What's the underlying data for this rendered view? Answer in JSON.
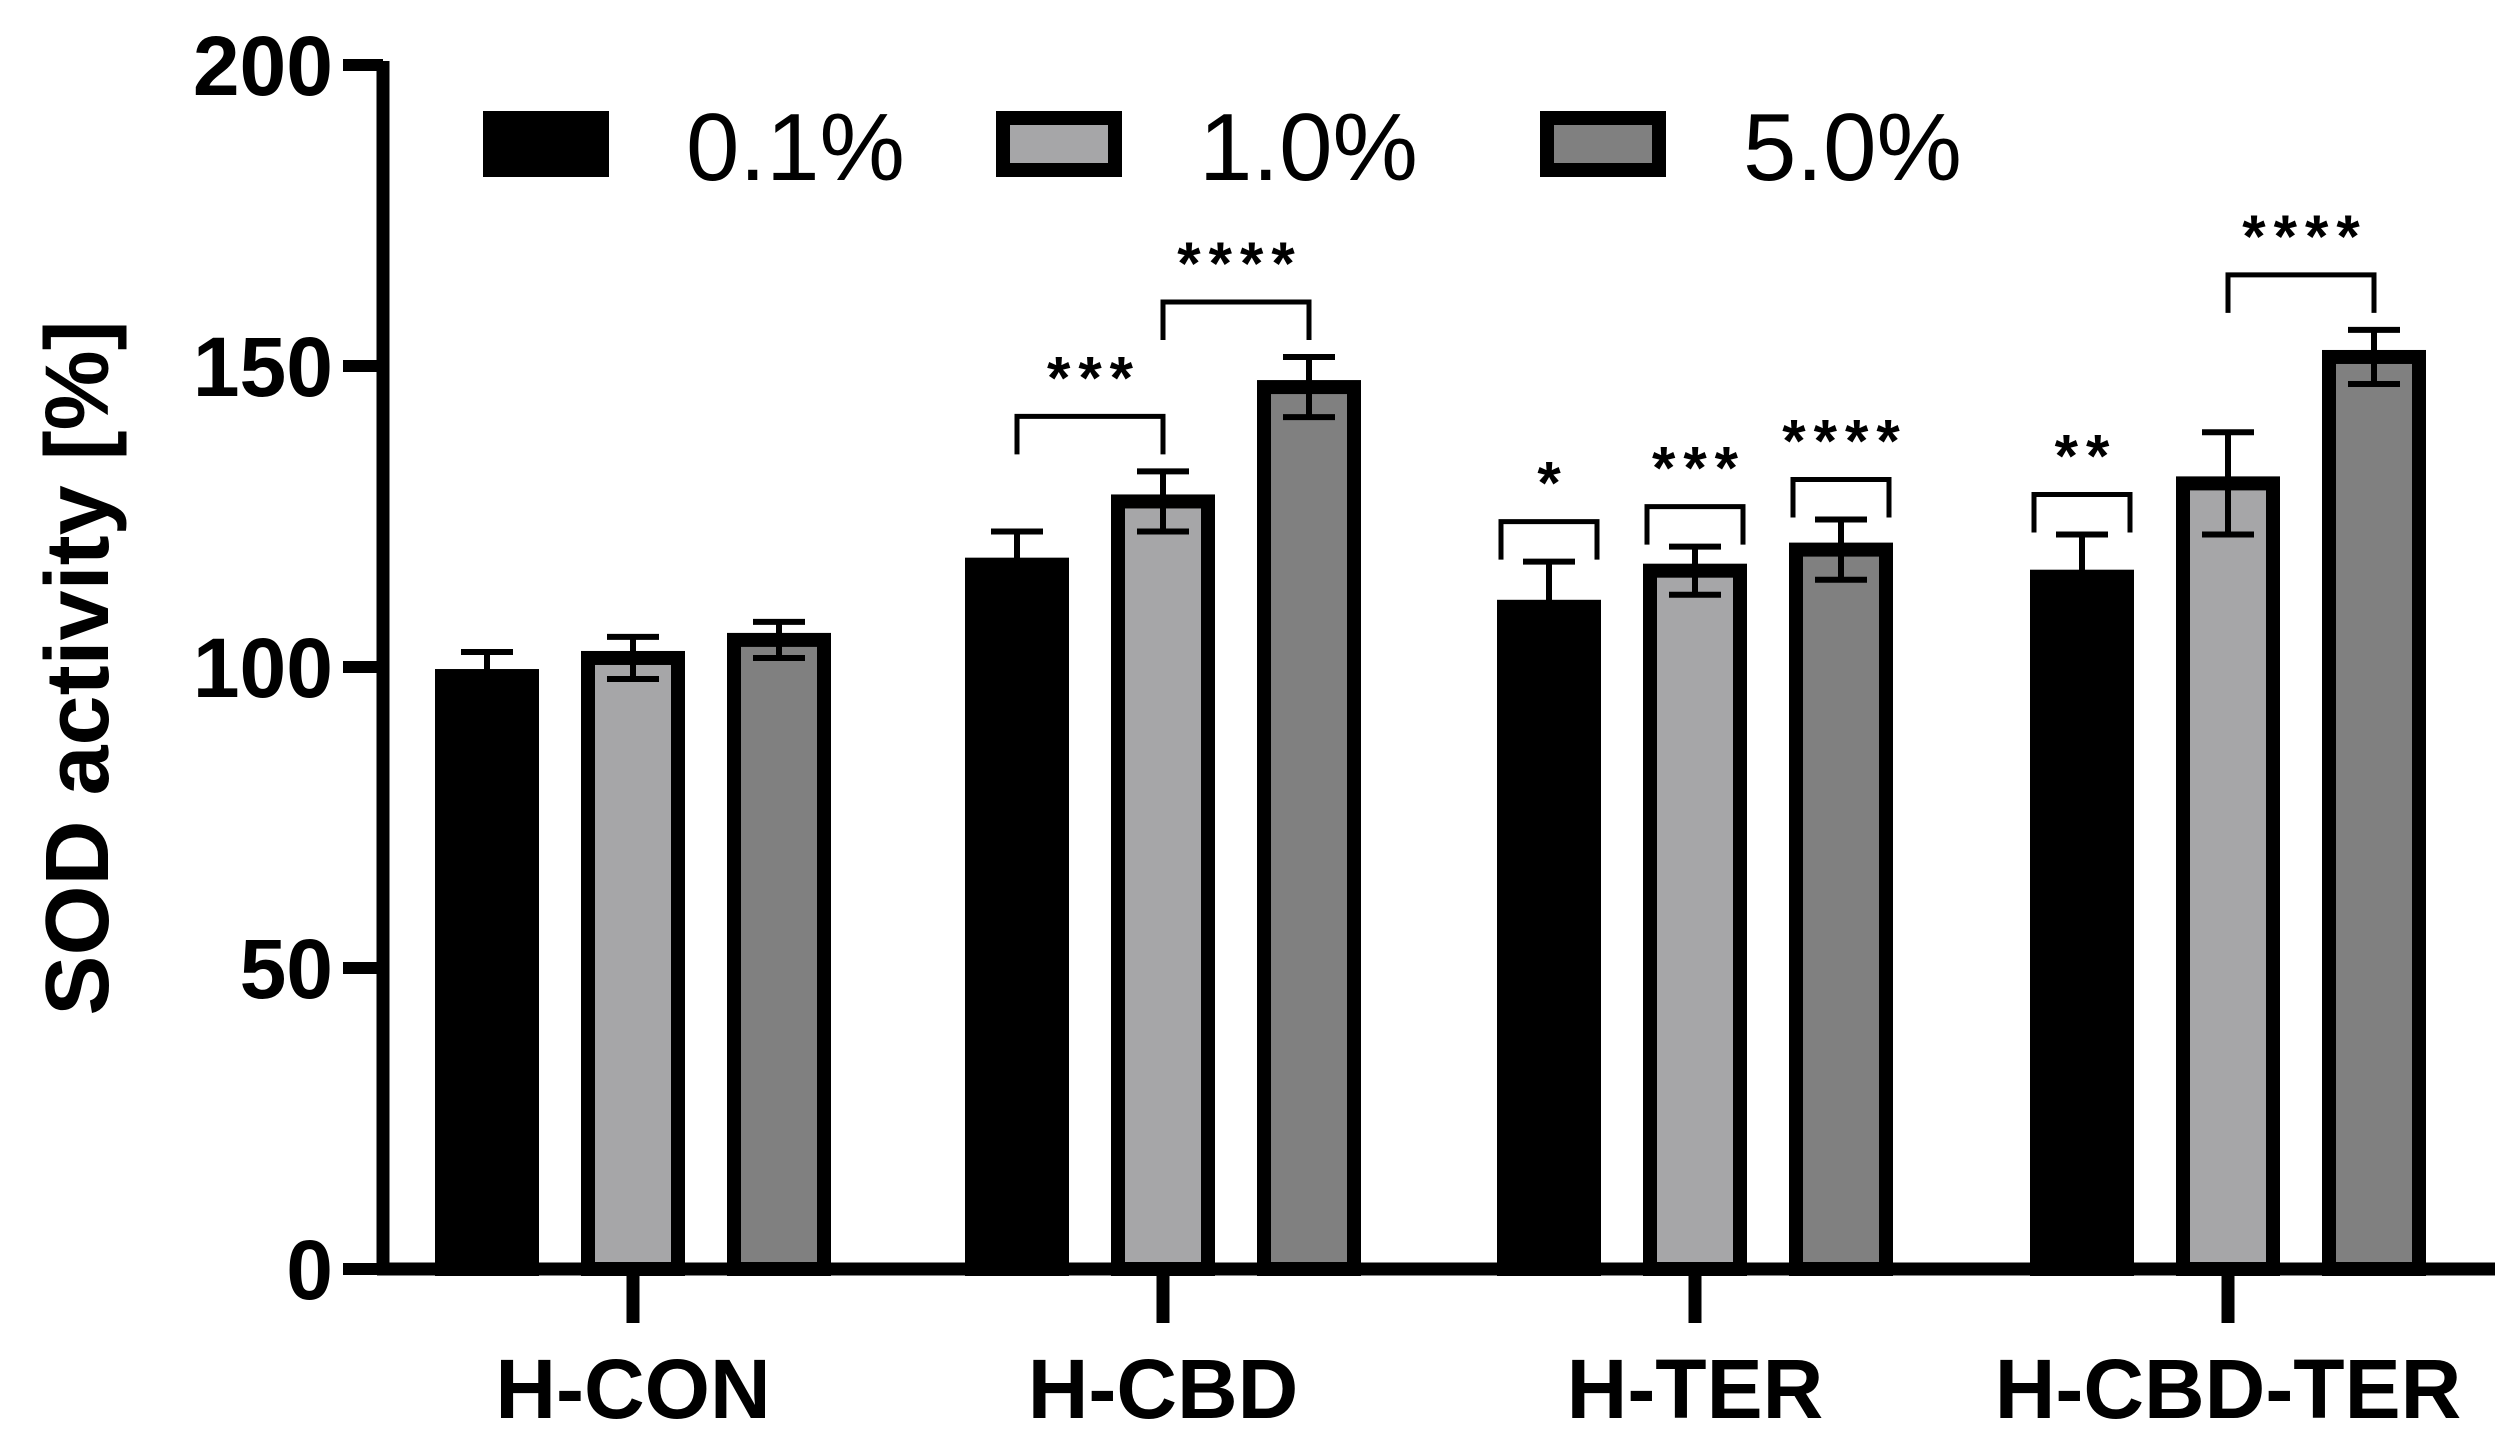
{
  "chart_data": {
    "type": "bar",
    "title": "",
    "xlabel": "",
    "ylabel": "SOD activity [%]",
    "ylim": [
      0,
      200
    ],
    "yticks": [
      "0",
      "50",
      "100",
      "150",
      "200"
    ],
    "categories": [
      "H-CON",
      "H-CBD",
      "H-TER",
      "H-CBD-TER"
    ],
    "legend_position": "top",
    "series": [
      {
        "name": "0.1%",
        "color": "#000000",
        "values": [
          98.5,
          117,
          110,
          115
        ],
        "errors": [
          4,
          5.5,
          7.5,
          7
        ]
      },
      {
        "name": "1.0%",
        "color": "#a6a6a8",
        "values": [
          101.5,
          127.5,
          116,
          130.5
        ],
        "errors": [
          3.5,
          5,
          4,
          8.5
        ]
      },
      {
        "name": "5.0%",
        "color": "#808080",
        "values": [
          104.5,
          146.5,
          119.5,
          151.5
        ],
        "errors": [
          3,
          5,
          5,
          4.5
        ]
      }
    ],
    "significance": [
      {
        "label": "***",
        "category": 1,
        "from_series": 0,
        "to_series": 1
      },
      {
        "label": "****",
        "category": 1,
        "from_series": 1,
        "to_series": 2
      },
      {
        "label": "*",
        "category": 2,
        "from_series": 0,
        "to_series": 0
      },
      {
        "label": "***",
        "category": 2,
        "from_series": 1,
        "to_series": 1
      },
      {
        "label": "****",
        "category": 2,
        "from_series": 2,
        "to_series": 2
      },
      {
        "label": "**",
        "category": 3,
        "from_series": 0,
        "to_series": 0
      },
      {
        "label": "****",
        "category": 3,
        "from_series": 1,
        "to_series": 2
      }
    ]
  }
}
